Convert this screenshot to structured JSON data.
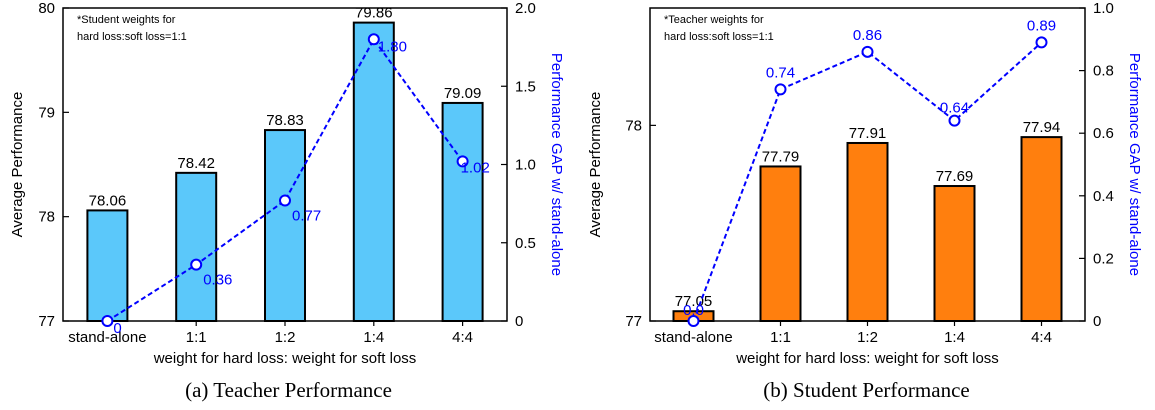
{
  "chart_data": [
    {
      "type": "bar",
      "caption": "(a)  Teacher Performance",
      "note_lines": [
        "*Student weights for",
        "hard loss:soft loss=1:1"
      ],
      "xlabel": "weight for hard loss: weight for soft loss",
      "ylabel": "Average Performance",
      "y2label": "Performance GAP w/ stand-alone",
      "categories": [
        "stand-alone",
        "1:1",
        "1:2",
        "1:4",
        "4:4"
      ],
      "bar_values": [
        78.06,
        78.42,
        78.83,
        79.86,
        79.09
      ],
      "bar_labels": [
        "78.06",
        "78.42",
        "78.83",
        "79.86",
        "79.09"
      ],
      "gap_values": [
        0,
        0.36,
        0.77,
        1.8,
        1.02
      ],
      "gap_labels": [
        "0",
        "0.36",
        "0.77",
        "1.80",
        "1.02"
      ],
      "ylim": [
        77,
        80
      ],
      "yticks": [
        "77",
        "78",
        "79",
        "80"
      ],
      "y2lim": [
        0,
        2.0
      ],
      "y2ticks": [
        "0",
        "0.5",
        "1.0",
        "1.5",
        "2.0"
      ],
      "bar_color": "#5bc8fa",
      "line_color": "#0000ff"
    },
    {
      "type": "bar",
      "caption": "(b)  Student Performance",
      "note_lines": [
        "*Teacher weights for",
        "hard loss:soft loss=1:1"
      ],
      "xlabel": "weight for hard loss: weight for soft loss",
      "ylabel": "Average Performance",
      "y2label": "Performance GAP w/ stand-alone",
      "categories": [
        "stand-alone",
        "1:1",
        "1:2",
        "1:4",
        "4:4"
      ],
      "bar_values": [
        77.05,
        77.79,
        77.91,
        77.69,
        77.94
      ],
      "bar_labels": [
        "77.05",
        "77.79",
        "77.91",
        "77.69",
        "77.94"
      ],
      "gap_values": [
        0,
        0.74,
        0.86,
        0.64,
        0.89
      ],
      "gap_labels": [
        "0.0",
        "0.74",
        "0.86",
        "0.64",
        "0.89"
      ],
      "ylim": [
        77,
        78.6
      ],
      "yticks": [
        "77",
        "78"
      ],
      "y2lim": [
        0,
        1.0
      ],
      "y2ticks": [
        "0",
        "0.2",
        "0.4",
        "0.6",
        "0.8",
        "1.0"
      ],
      "bar_color": "#ff7f0e",
      "line_color": "#0000ff"
    }
  ]
}
